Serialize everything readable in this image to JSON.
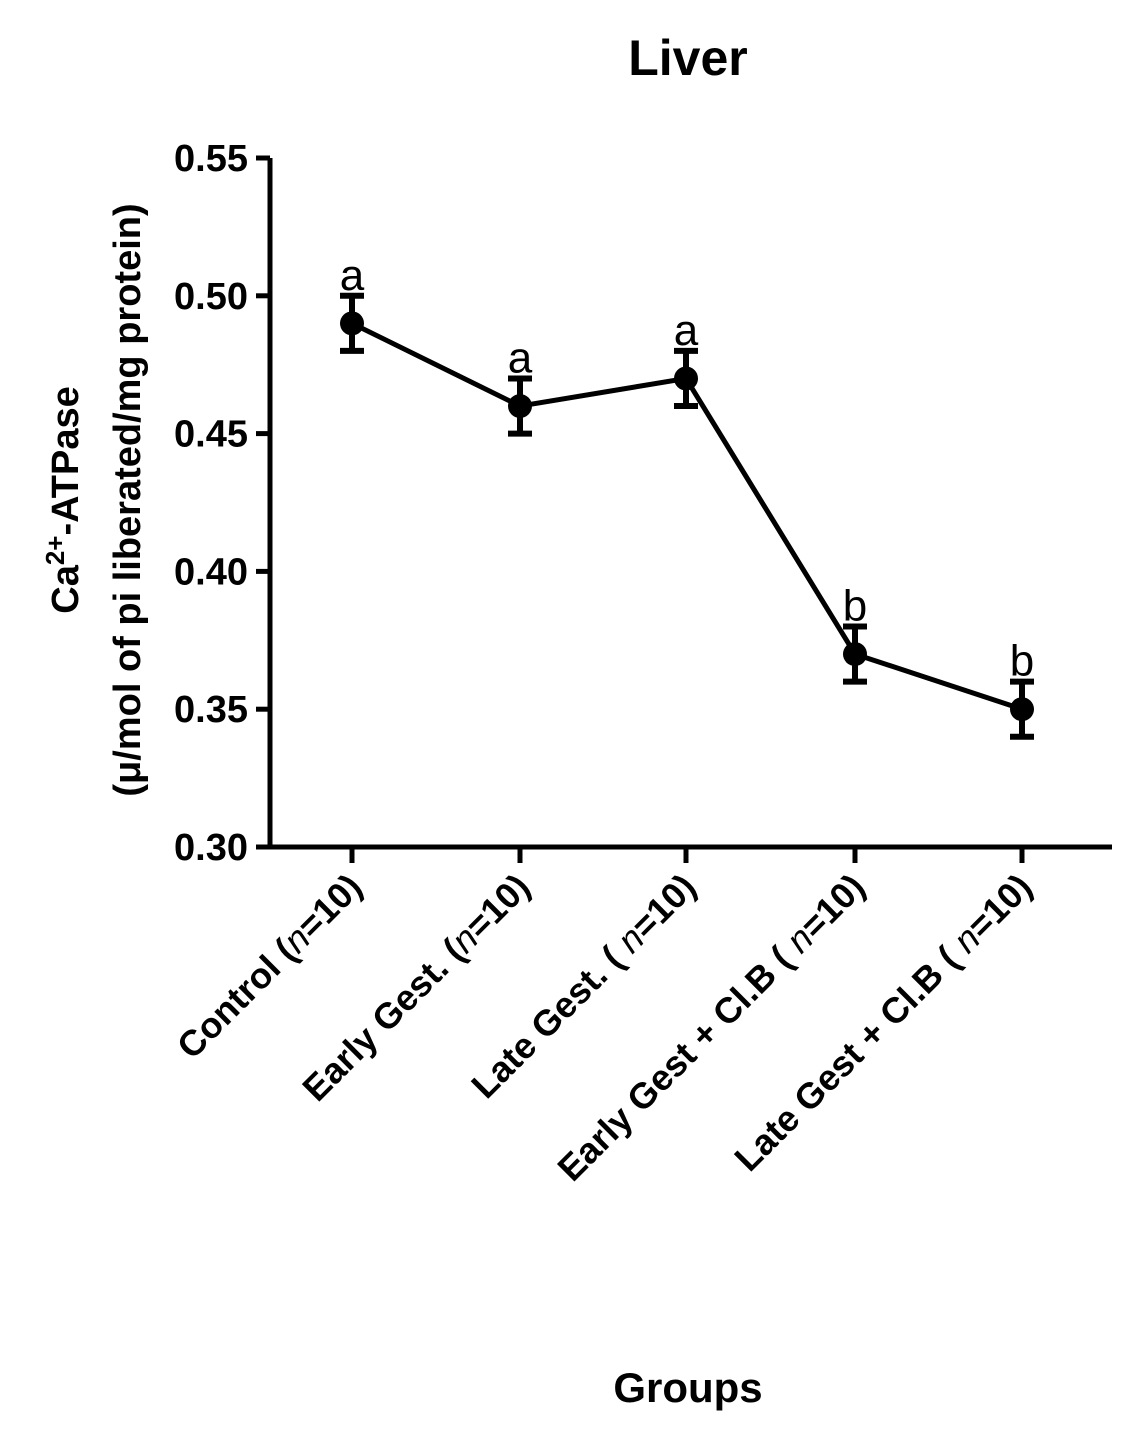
{
  "chart_data": {
    "type": "line",
    "title": "Liver",
    "xlabel": "Groups",
    "ylabel_line1_main": "Ca",
    "ylabel_line1_sup": "2+",
    "ylabel_line1_rest": "-ATPase",
    "ylabel_line2": "(μ/mol of pi liberated/mg protein)",
    "ylim": [
      0.3,
      0.55
    ],
    "yticks": [
      "0.30",
      "0.35",
      "0.40",
      "0.45",
      "0.50",
      "0.55"
    ],
    "ytick_values": [
      0.3,
      0.35,
      0.4,
      0.45,
      0.5,
      0.55
    ],
    "categories": [
      {
        "name": "Control",
        "n_text": "n",
        "n_value": "=10)",
        "open": " ("
      },
      {
        "name": "Early Gest.",
        "n_text": "n",
        "n_value": "=10)",
        "open": " ("
      },
      {
        "name": "Late Gest.",
        "n_text": "n",
        "n_value": "=10)",
        "open": " ( "
      },
      {
        "name": "Early Gest + Cl.B",
        "n_text": "n",
        "n_value": "=10)",
        "open": " ( "
      },
      {
        "name": "Late Gest + Cl.B",
        "n_text": "n",
        "n_value": "=10)",
        "open": " ( "
      }
    ],
    "series": [
      {
        "name": "Ca2+-ATPase",
        "values": [
          0.49,
          0.46,
          0.47,
          0.37,
          0.35
        ],
        "errors": [
          0.01,
          0.01,
          0.01,
          0.01,
          0.01
        ],
        "significance": [
          "a",
          "a",
          "a",
          "b",
          "b"
        ]
      }
    ],
    "color": "#000000"
  }
}
